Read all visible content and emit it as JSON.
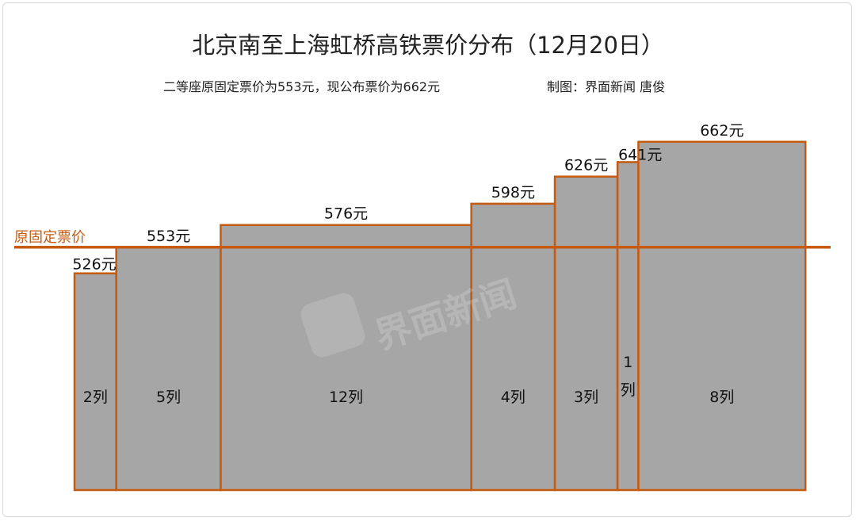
{
  "chart_data": {
    "type": "bar",
    "variant": "variable-width (marimekko)",
    "title": "北京南至上海虹桥高铁票价分布（12月20日）",
    "subtitle": "二等座原固定票价为553元，现公布票价为662元",
    "credit": "制图：界面新闻 唐俊",
    "categories": [
      "2列",
      "5列",
      "12列",
      "4列",
      "3列",
      "1列",
      "8列"
    ],
    "category_labels": [
      "2列",
      "5列",
      "12列",
      "4列",
      "3列",
      "1\n列",
      "8列"
    ],
    "widths": [
      2,
      5,
      12,
      4,
      3,
      1,
      8
    ],
    "values": [
      526,
      553,
      576,
      598,
      626,
      641,
      662
    ],
    "value_labels": [
      "526元",
      "553元",
      "576元",
      "598元",
      "626元",
      "641元",
      "662元"
    ],
    "reference_line": {
      "value": 553,
      "label": "原固定票价"
    },
    "ylim": [
      302,
      686
    ],
    "grid": false,
    "colors": {
      "bar_fill": "#a6a6a6",
      "bar_stroke": "#c55a11",
      "reference": "#c55a11",
      "text": "#111111"
    },
    "watermark": "界面新闻"
  }
}
